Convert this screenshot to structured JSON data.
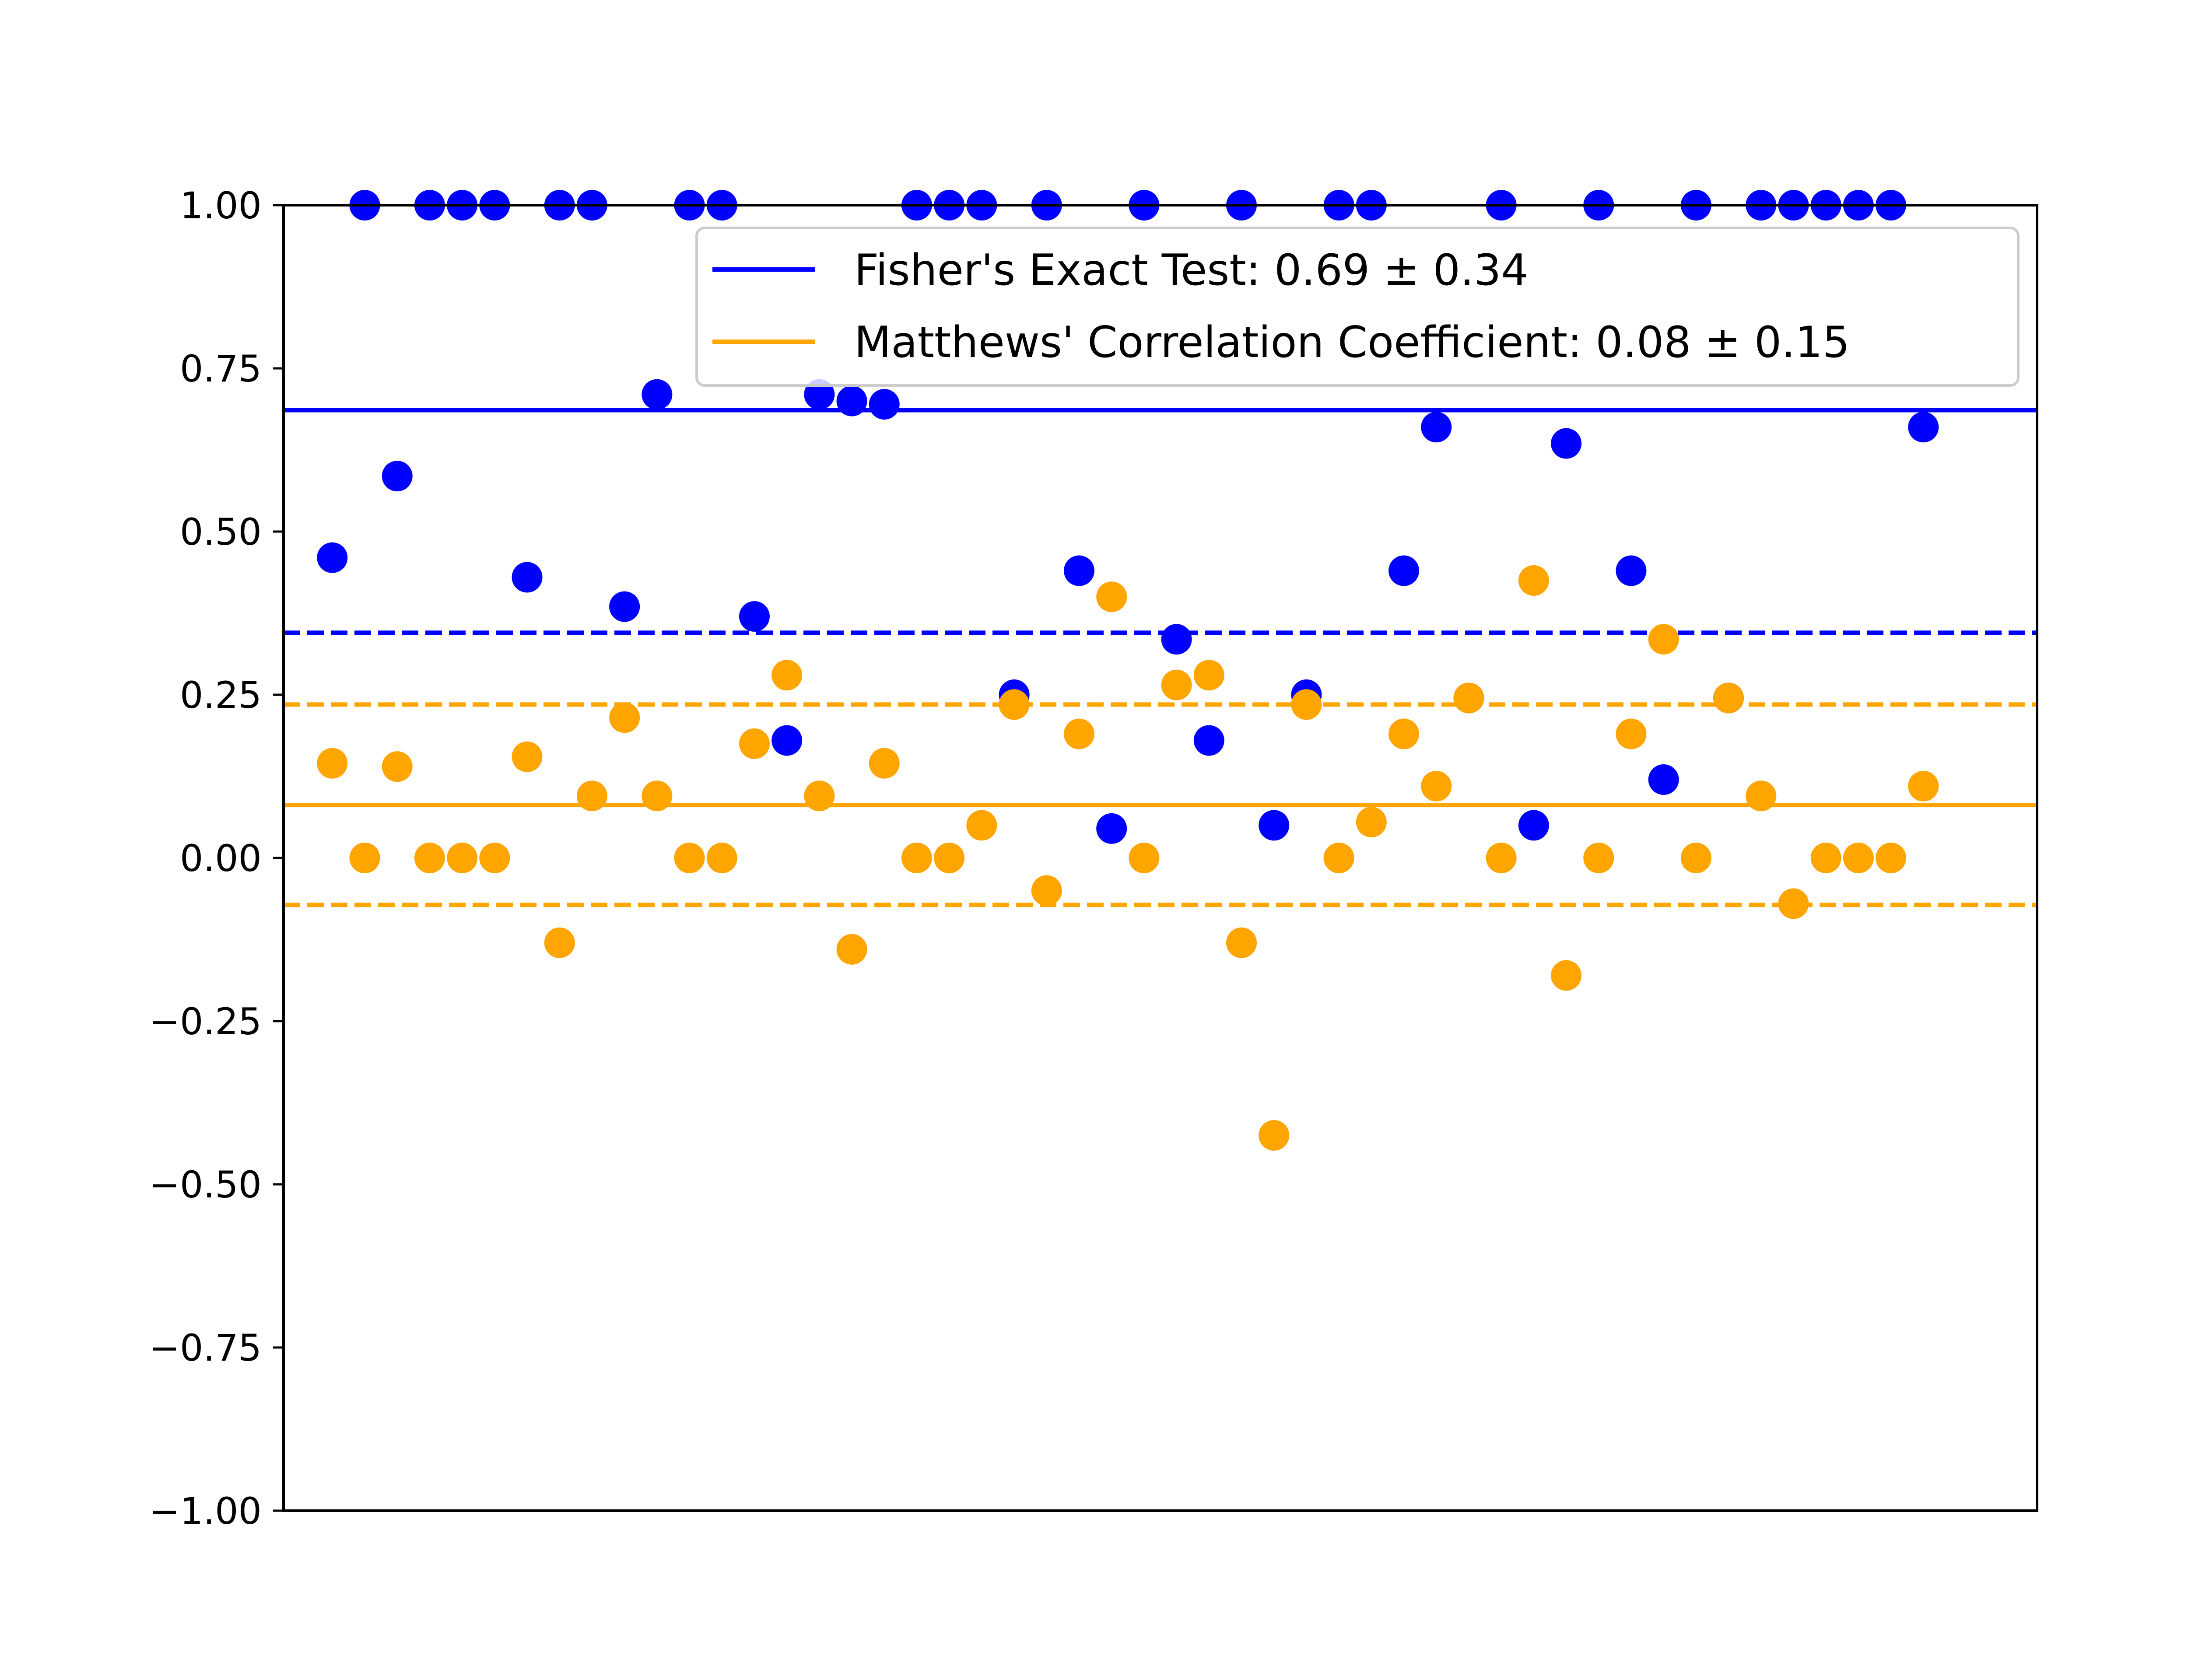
{
  "chart_data": {
    "type": "scatter",
    "title": "",
    "xlabel": "",
    "ylabel": "",
    "ylim": [
      -1.0,
      1.0
    ],
    "xlim": [
      -1.5,
      52.5
    ],
    "x_ticks_visible": false,
    "grid": false,
    "legend_position": "top-right",
    "y_ticks": [
      {
        "value": 1.0,
        "label": "1.00"
      },
      {
        "value": 0.75,
        "label": "0.75"
      },
      {
        "value": 0.5,
        "label": "0.50"
      },
      {
        "value": 0.25,
        "label": "0.25"
      },
      {
        "value": 0.0,
        "label": "0.00"
      },
      {
        "value": -0.25,
        "label": "−0.25"
      },
      {
        "value": -0.5,
        "label": "−0.50"
      },
      {
        "value": -0.75,
        "label": "−0.75"
      },
      {
        "value": -1.0,
        "label": "−1.00"
      }
    ],
    "series": [
      {
        "name": "Fisher's Exact Test: 0.69 ± 0.34",
        "color": "#0000ff",
        "mean": 0.69,
        "std": 0.34,
        "values": [
          0.46,
          1.0,
          0.585,
          1.0,
          1.0,
          1.0,
          0.43,
          1.0,
          1.0,
          0.385,
          0.71,
          1.0,
          1.0,
          0.37,
          0.18,
          0.71,
          0.7,
          0.695,
          1.0,
          1.0,
          1.0,
          0.25,
          1.0,
          0.44,
          0.045,
          1.0,
          0.335,
          0.18,
          1.0,
          0.05,
          0.25,
          1.0,
          1.0,
          0.44,
          0.66,
          0.245,
          1.0,
          0.05,
          0.635,
          1.0,
          0.44,
          0.12,
          1.0,
          0.245,
          1.0,
          1.0,
          1.0,
          1.0,
          1.0,
          0.66
        ]
      },
      {
        "name": "Matthews' Correlation Coefficient: 0.08 ± 0.15",
        "color": "#ffa500",
        "mean": 0.08,
        "std": 0.15,
        "values": [
          0.145,
          0.0,
          0.14,
          0.0,
          0.0,
          0.0,
          0.155,
          -0.13,
          0.095,
          0.215,
          0.095,
          0.0,
          0.0,
          0.175,
          0.28,
          0.095,
          -0.14,
          0.145,
          0.0,
          0.0,
          0.05,
          0.235,
          -0.05,
          0.19,
          0.4,
          0.0,
          0.265,
          0.28,
          -0.13,
          -0.425,
          0.235,
          0.0,
          0.055,
          0.19,
          0.11,
          0.245,
          0.0,
          0.425,
          -0.18,
          0.0,
          0.19,
          0.335,
          0.0,
          0.245,
          0.095,
          -0.07,
          0.0,
          0.0,
          0.0,
          0.11
        ]
      }
    ],
    "reference_lines": [
      {
        "series": 0,
        "kind": "mean",
        "value": 0.686,
        "style": "solid"
      },
      {
        "series": 0,
        "kind": "mean-minus-std",
        "value": 0.345,
        "style": "dashed"
      },
      {
        "series": 1,
        "kind": "mean-plus-std",
        "value": 0.235,
        "style": "dashed"
      },
      {
        "series": 1,
        "kind": "mean",
        "value": 0.081,
        "style": "solid"
      },
      {
        "series": 1,
        "kind": "mean-minus-std",
        "value": -0.072,
        "style": "dashed"
      }
    ]
  }
}
